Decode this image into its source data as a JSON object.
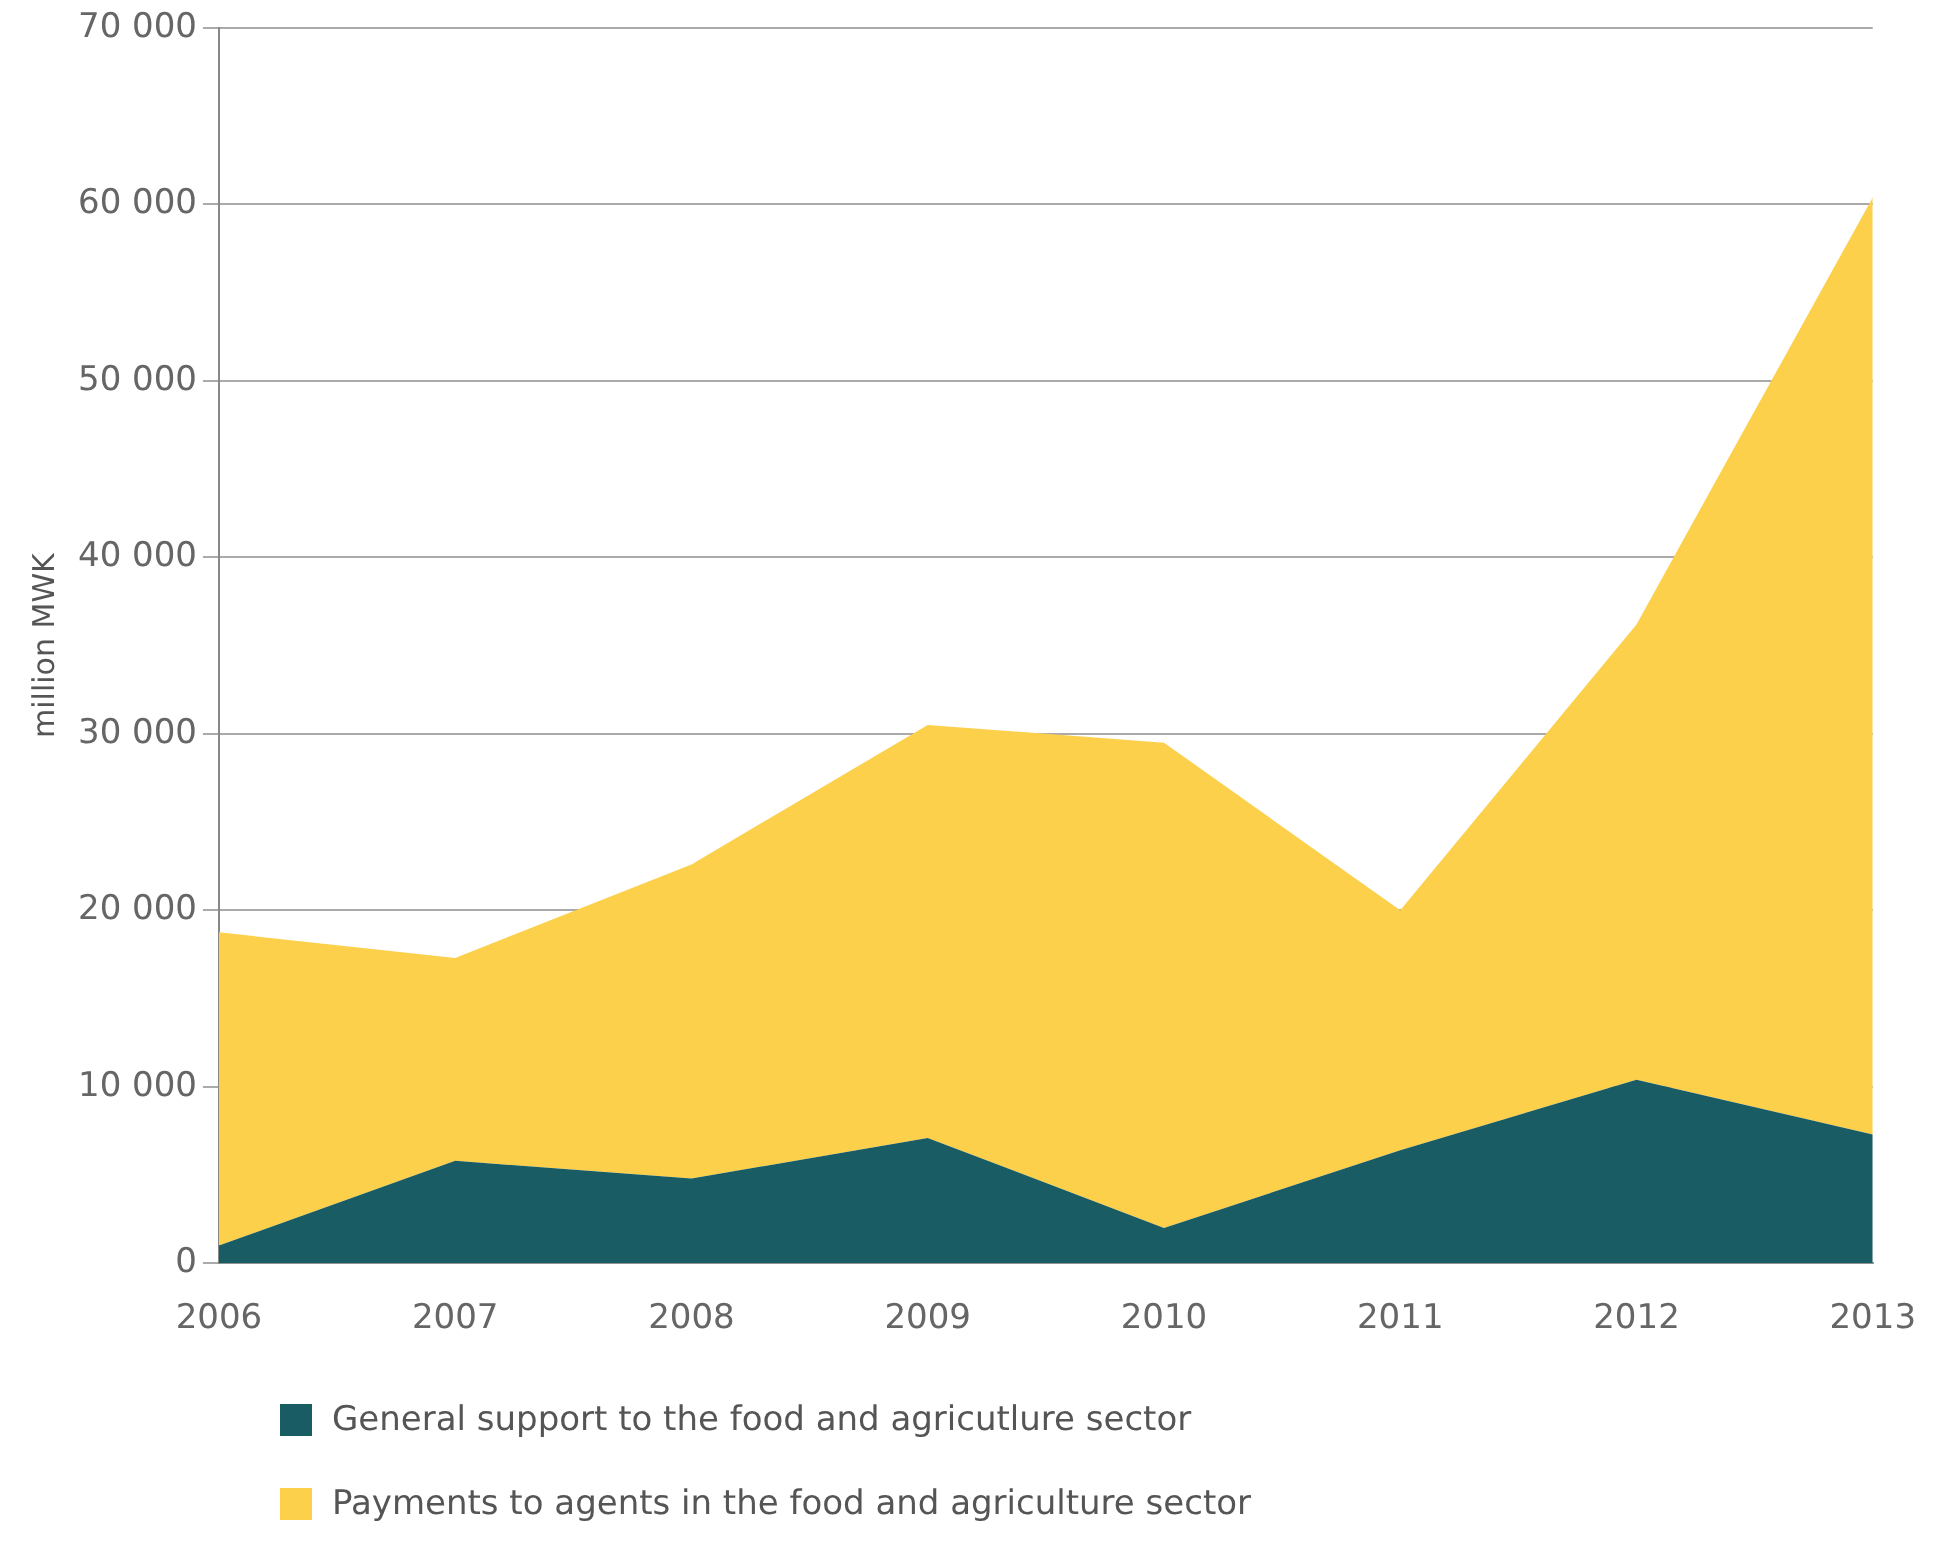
{
  "chart_data": {
    "type": "area",
    "stacked": true,
    "ylabel": "million MWK",
    "categories": [
      "2006",
      "2007",
      "2008",
      "2009",
      "2010",
      "2011",
      "2012",
      "2013"
    ],
    "series": [
      {
        "name": "General support to the food and agricutlure sector",
        "color": "#1a5c63",
        "values": [
          1000,
          5800,
          4800,
          7100,
          2000,
          6400,
          10400,
          7300
        ]
      },
      {
        "name": "Payments to agents in the food and agriculture sector",
        "color": "#fcd04a",
        "values": [
          17750,
          11500,
          17800,
          23400,
          27500,
          13600,
          25800,
          53100
        ]
      }
    ],
    "ylim": [
      0,
      70000
    ],
    "yticks": [
      0,
      {
        "value": 10000,
        "label": "10 000"
      },
      {
        "value": 20000,
        "label": "20 000"
      },
      {
        "value": 30000,
        "label": "30 000"
      },
      {
        "value": 40000,
        "label": "40 000"
      },
      {
        "value": 50000,
        "label": "50 000"
      },
      {
        "value": 60000,
        "label": "60 000"
      },
      {
        "value": 70000,
        "label": "70 000"
      }
    ],
    "grid": "y",
    "legend": "bottom"
  }
}
